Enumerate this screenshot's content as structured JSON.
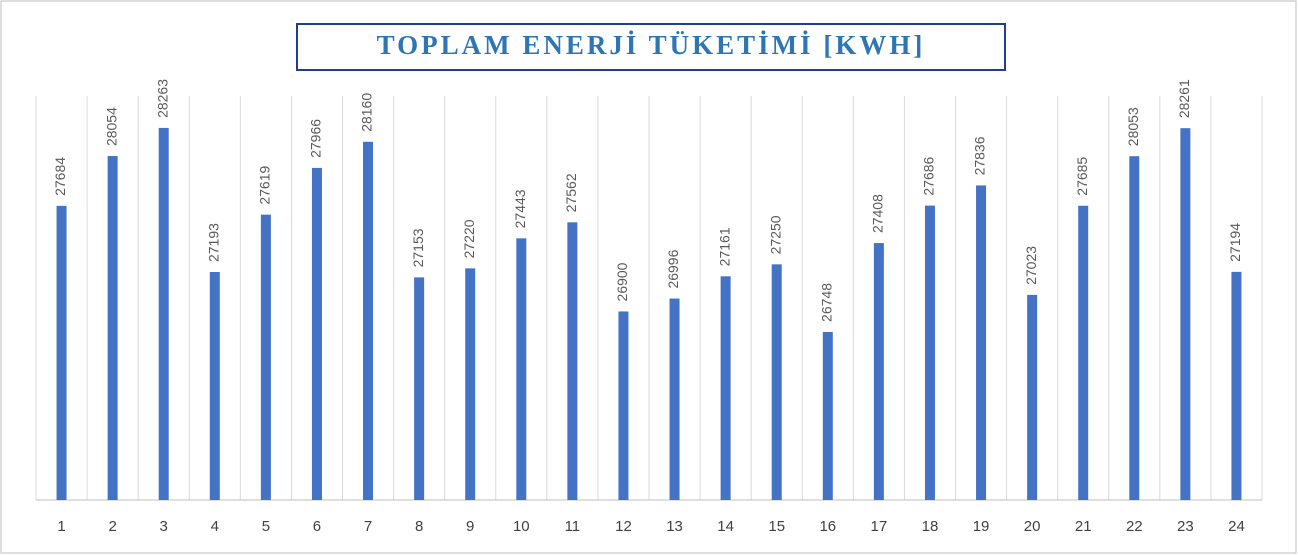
{
  "chart_data": {
    "type": "bar",
    "title": "TOPLAM ENERJİ TÜKETİMİ [KWH]",
    "categories": [
      "1",
      "2",
      "3",
      "4",
      "5",
      "6",
      "7",
      "8",
      "9",
      "10",
      "11",
      "12",
      "13",
      "14",
      "15",
      "16",
      "17",
      "18",
      "19",
      "20",
      "21",
      "22",
      "23",
      "24"
    ],
    "values": [
      27684,
      28054,
      28263,
      27193,
      27619,
      27966,
      28160,
      27153,
      27220,
      27443,
      27562,
      26900,
      26996,
      27161,
      27250,
      26748,
      27408,
      27686,
      27836,
      27023,
      27685,
      28053,
      28261,
      27194
    ],
    "color": "#4472c4",
    "ylim": [
      25500,
      28500
    ],
    "grid": true
  }
}
